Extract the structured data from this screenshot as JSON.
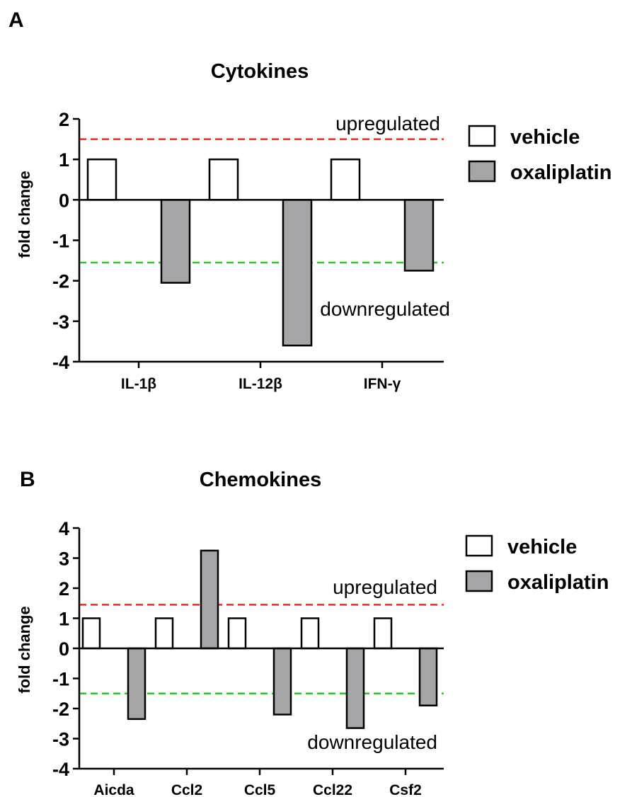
{
  "panels": [
    {
      "letter": "A",
      "chart_data": {
        "type": "bar",
        "title": "Cytokines",
        "ylabel": "fold change",
        "xlabel": "",
        "categories": [
          "IL-1β",
          "IL-12β",
          "IFN-γ"
        ],
        "ylim": [
          -4,
          2
        ],
        "yticks": [
          2,
          1,
          0,
          -1,
          -2,
          -3,
          -4
        ],
        "series": [
          {
            "name": "vehicle",
            "values": [
              1,
              1,
              1
            ],
            "color": "#ffffff"
          },
          {
            "name": "oxaliplatin",
            "values": [
              -2.05,
              -3.6,
              -1.75
            ],
            "color": "#a6a6a8"
          }
        ],
        "thresholds": [
          {
            "value": 1.5,
            "label": "upregulated",
            "color": "#ff2020"
          },
          {
            "value": -1.55,
            "label": "downregulated",
            "color": "#22cc22"
          }
        ],
        "grid": false,
        "legend_position": "right"
      }
    },
    {
      "letter": "B",
      "chart_data": {
        "type": "bar",
        "title": "Chemokines",
        "ylabel": "fold change",
        "xlabel": "",
        "categories": [
          "Aicda",
          "Ccl2",
          "Ccl5",
          "Ccl22",
          "Csf2"
        ],
        "ylim": [
          -4,
          4
        ],
        "yticks": [
          4,
          3,
          2,
          1,
          0,
          -1,
          -2,
          -3,
          -4
        ],
        "series": [
          {
            "name": "vehicle",
            "values": [
              1,
              1,
              1,
              1,
              1
            ],
            "color": "#ffffff"
          },
          {
            "name": "oxaliplatin",
            "values": [
              -2.35,
              3.25,
              -2.2,
              -2.65,
              -1.9
            ],
            "color": "#a6a6a8"
          }
        ],
        "thresholds": [
          {
            "value": 1.45,
            "label": "upregulated",
            "color": "#ff2020"
          },
          {
            "value": -1.5,
            "label": "downregulated",
            "color": "#22cc22"
          }
        ],
        "grid": false,
        "legend_position": "right"
      }
    }
  ]
}
